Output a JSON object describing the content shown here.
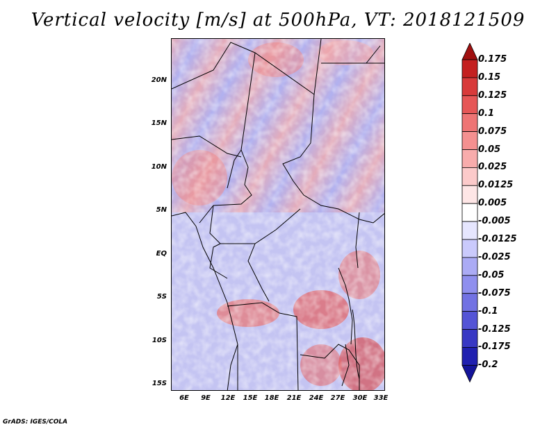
{
  "title": "Vertical velocity [m/s] at 500hPa, VT: 2018121509",
  "credit": "GrADS: IGES/COLA",
  "map": {
    "region": "Central Africa",
    "lat_labels": [
      "20N",
      "15N",
      "10N",
      "5N",
      "EQ",
      "5S",
      "10S",
      "15S"
    ],
    "lon_labels": [
      "6E",
      "9E",
      "12E",
      "15E",
      "18E",
      "21E",
      "24E",
      "27E",
      "30E",
      "33E"
    ]
  },
  "colorbar": {
    "labels": [
      "0.175",
      "0.15",
      "0.125",
      "0.1",
      "0.075",
      "0.05",
      "0.025",
      "0.0125",
      "0.005",
      "-0.005",
      "-0.0125",
      "-0.025",
      "-0.05",
      "-0.075",
      "-0.1",
      "-0.125",
      "-0.175",
      "-0.2"
    ],
    "colors": [
      "#a01010",
      "#c42020",
      "#d83a3a",
      "#e65656",
      "#ee7474",
      "#f49090",
      "#f8acac",
      "#fccaca",
      "#fee6e6",
      "#ffffff",
      "#e6e6fe",
      "#cacafc",
      "#ababf5",
      "#8f8fee",
      "#7272e3",
      "#5454d6",
      "#3838c4",
      "#2020b0",
      "#14149a"
    ]
  }
}
